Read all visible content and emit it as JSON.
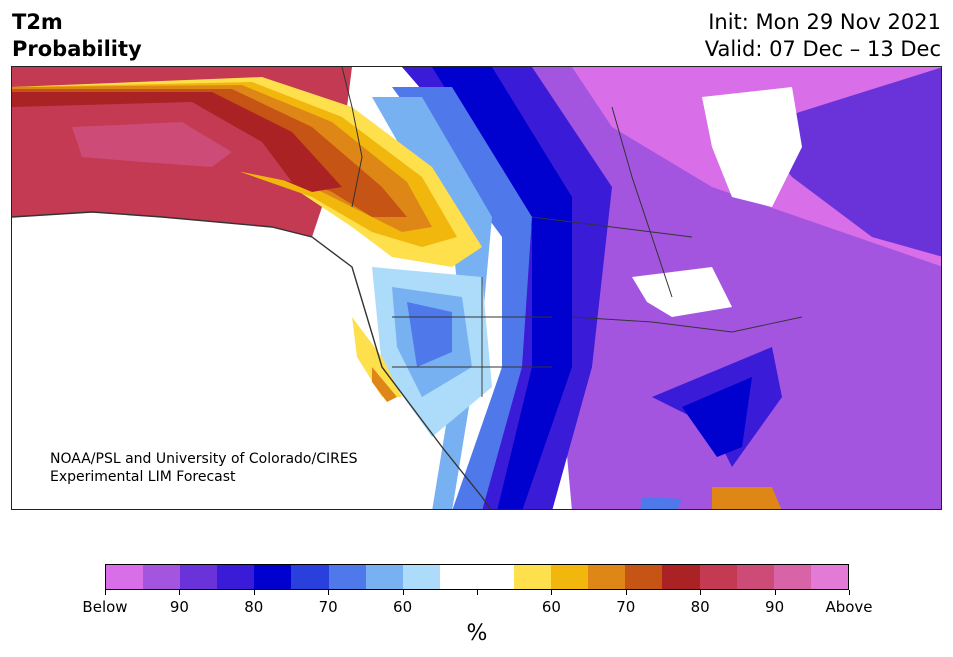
{
  "header": {
    "variable": "T2m",
    "kind": "Probability",
    "init": "Init: Mon 29 Nov 2021",
    "valid": "Valid: 07 Dec – 13 Dec"
  },
  "credit": {
    "line1": "NOAA/PSL and University of Colorado/CIRES",
    "line2": "Experimental LIM Forecast"
  },
  "colorbar": {
    "unit": "%",
    "below_colors": [
      "#d86ee8",
      "#a455e0",
      "#6a33da",
      "#3a1bd8",
      "#0000cf",
      "#2a40dc",
      "#4f78ea",
      "#78b1f2",
      "#acdcfa"
    ],
    "neutral_color": "#ffffff",
    "above_colors": [
      "#fedf4c",
      "#f1b70c",
      "#df8716",
      "#c65515",
      "#ab2225",
      "#c33a52",
      "#cc4b77",
      "#d963a7",
      "#e37ad6"
    ],
    "labels": [
      "Below",
      "90",
      "80",
      "70",
      "60",
      "60",
      "70",
      "80",
      "90",
      "Above"
    ]
  }
}
